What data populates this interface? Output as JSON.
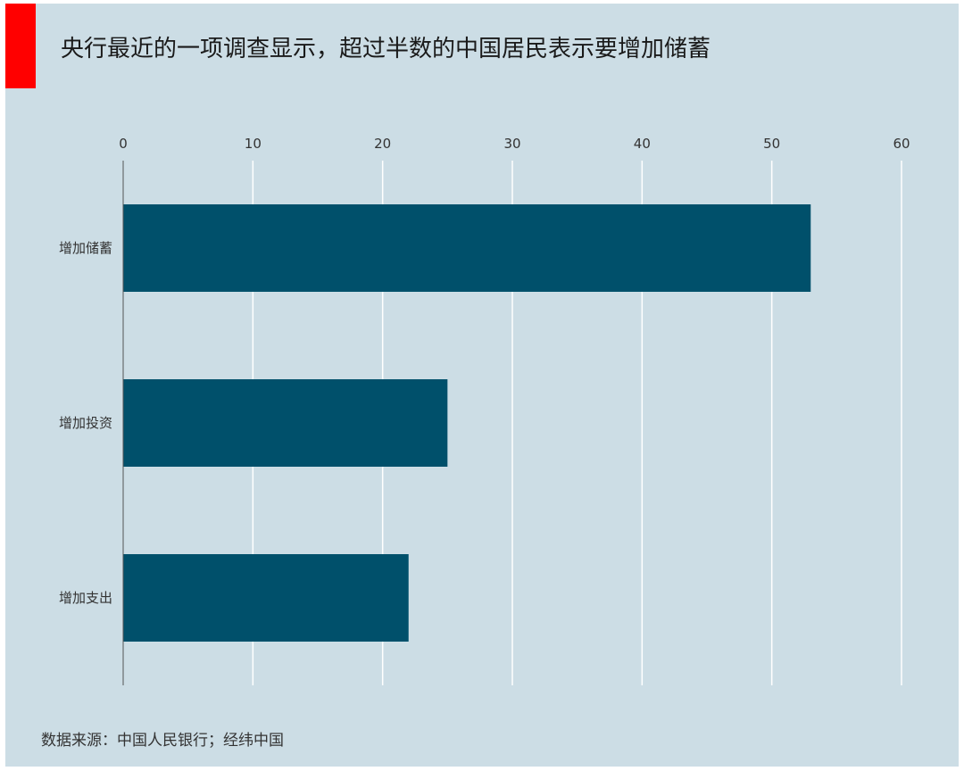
{
  "title": "央行最近的一项调查显示，超过半数的中国居民表示要增加储蓄",
  "source": "数据来源：中国人民银行；经纬中国",
  "colors": {
    "background": "#ccdde5",
    "bar": "#00506b",
    "accent": "#ff0000",
    "grid": "#ffffff",
    "axis": "#555555"
  },
  "chart_data": {
    "type": "bar",
    "orientation": "horizontal",
    "categories": [
      "增加储蓄",
      "增加投资",
      "增加支出"
    ],
    "values": [
      53,
      25,
      22
    ],
    "xlim": [
      0,
      60
    ],
    "ticks": [
      0,
      10,
      20,
      30,
      40,
      50,
      60
    ],
    "tick_labels": [
      "0",
      "10",
      "20",
      "30",
      "40",
      "50",
      "60"
    ],
    "xaxis_position": "top",
    "grid": true,
    "legend": "none"
  }
}
